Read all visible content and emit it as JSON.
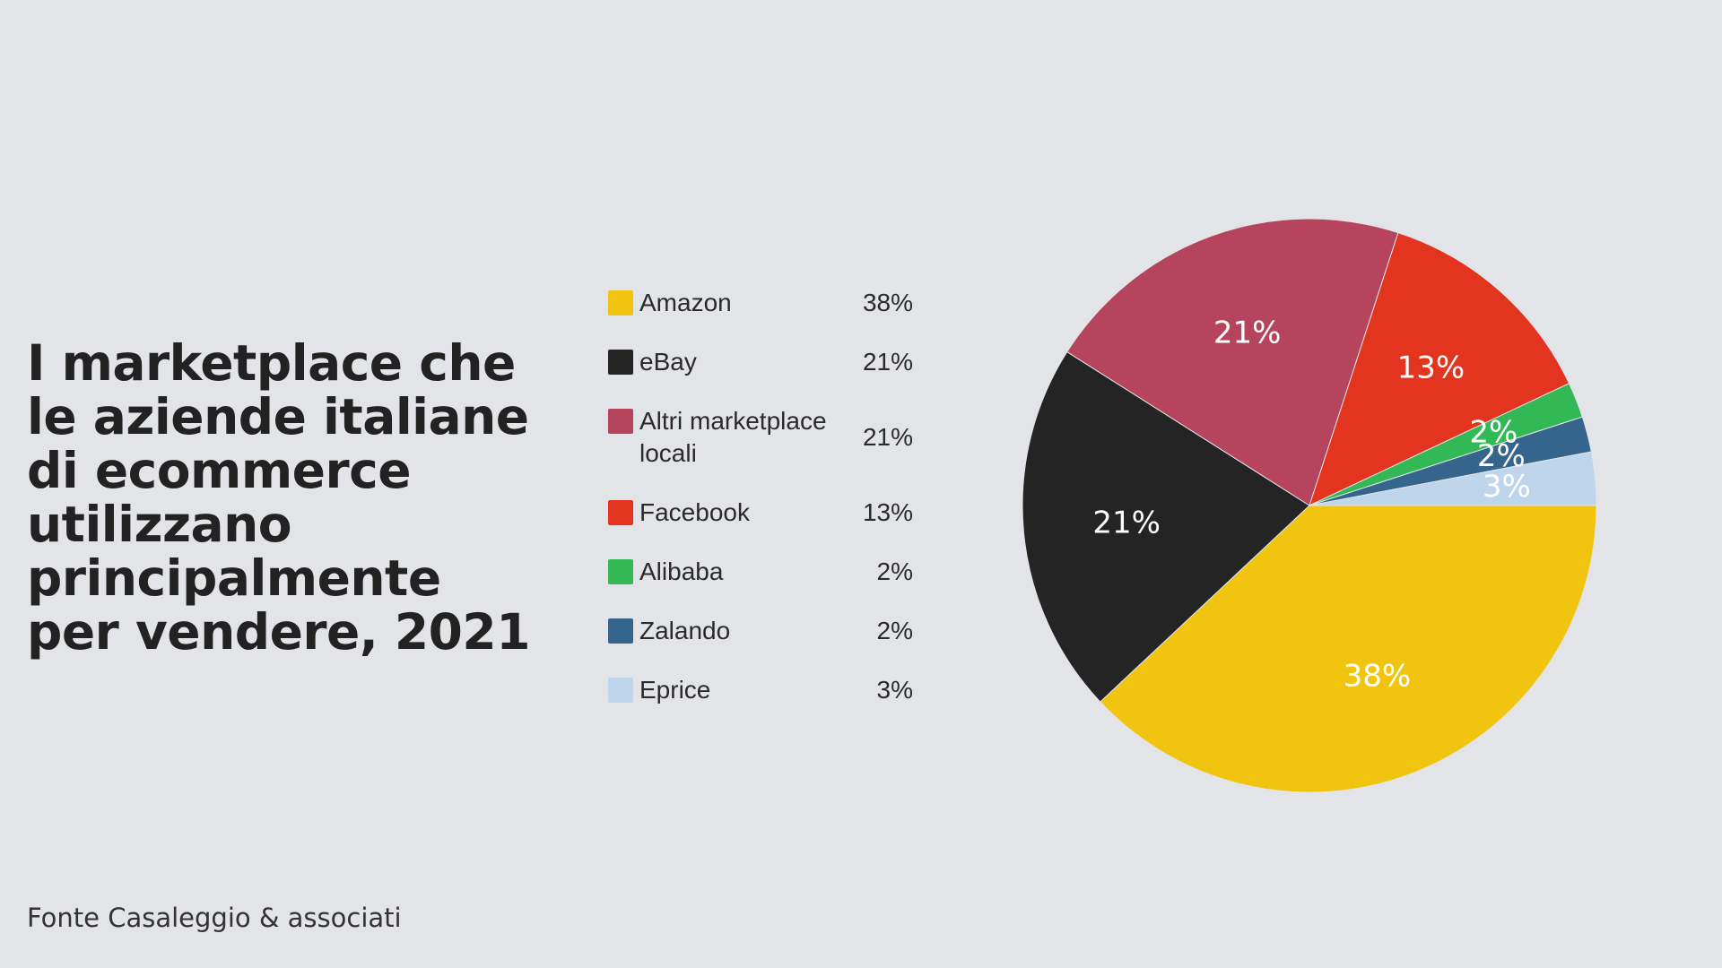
{
  "title": "I marketplace che\nle aziende italiane\ndi ecommerce\nutilizzano\nprincipalmente\nper vendere, 2021",
  "source": "Fonte Casaleggio & associati",
  "chart_data": {
    "type": "pie",
    "title": "I marketplace che le aziende italiane di ecommerce utilizzano principalmente per vendere, 2021",
    "legend_position": "left",
    "slices": [
      {
        "label": "Amazon",
        "value": 38,
        "value_label": "38%",
        "color": "#f0c40f"
      },
      {
        "label": "eBay",
        "value": 21,
        "value_label": "21%",
        "color": "#242424"
      },
      {
        "label": "Altri marketplace locali",
        "value": 21,
        "value_label": "21%",
        "color": "#b5445c"
      },
      {
        "label": "Facebook",
        "value": 13,
        "value_label": "13%",
        "color": "#e2341f"
      },
      {
        "label": "Alibaba",
        "value": 2,
        "value_label": "2%",
        "color": "#32b854"
      },
      {
        "label": "Zalando",
        "value": 2,
        "value_label": "2%",
        "color": "#35658c"
      },
      {
        "label": "Eprice",
        "value": 3,
        "value_label": "3%",
        "color": "#bfd5ec"
      }
    ]
  }
}
